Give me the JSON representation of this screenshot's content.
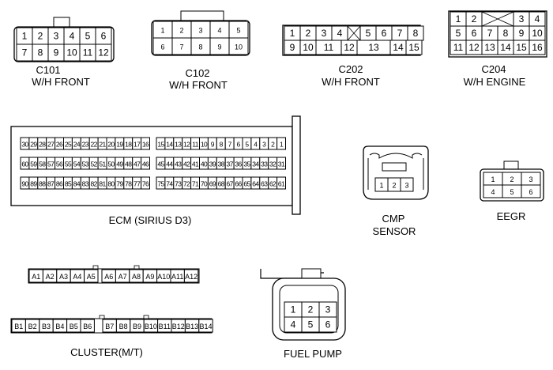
{
  "connectors": {
    "c101": {
      "name": "C101",
      "sub": "W/H FRONT",
      "rows": [
        [
          "1",
          "2",
          "3",
          "4",
          "5",
          "6"
        ],
        [
          "7",
          "8",
          "9",
          "10",
          "11",
          "12"
        ]
      ]
    },
    "c102": {
      "name": "C102",
      "sub": "W/H FRONT",
      "rows": [
        [
          "1",
          "2",
          "3",
          "4",
          "5"
        ],
        [
          "6",
          "7",
          "8",
          "9",
          "10"
        ]
      ]
    },
    "c202": {
      "name": "C202",
      "sub": "W/H FRONT",
      "row1": [
        "1",
        "2",
        "3",
        "4",
        "",
        "5",
        "6",
        "7",
        "8"
      ],
      "row2": [
        "9",
        "10",
        "11",
        "12",
        "13",
        "14",
        "15"
      ]
    },
    "c204": {
      "name": "C204",
      "sub": "W/H ENGINE",
      "row1": [
        "1",
        "2",
        "",
        "3",
        "4"
      ],
      "row2": [
        "5",
        "6",
        "7",
        "8",
        "9",
        "10"
      ],
      "row3": [
        "11",
        "12",
        "13",
        "14",
        "15",
        "16"
      ]
    },
    "ecm": {
      "name": "ECM (SIRIUS D3)",
      "left": [
        [
          "30",
          "29",
          "28",
          "27",
          "26",
          "25",
          "24",
          "23",
          "22",
          "21",
          "20",
          "19",
          "18",
          "17",
          "16"
        ],
        [
          "60",
          "59",
          "58",
          "57",
          "56",
          "55",
          "54",
          "53",
          "52",
          "51",
          "50",
          "49",
          "48",
          "47",
          "46"
        ],
        [
          "90",
          "89",
          "88",
          "87",
          "86",
          "85",
          "84",
          "83",
          "82",
          "81",
          "80",
          "79",
          "78",
          "77",
          "76"
        ]
      ],
      "right": [
        [
          "15",
          "14",
          "13",
          "12",
          "11",
          "10",
          "9",
          "8",
          "7",
          "6",
          "5",
          "4",
          "3",
          "2",
          "1"
        ],
        [
          "45",
          "44",
          "43",
          "42",
          "41",
          "40",
          "39",
          "38",
          "37",
          "36",
          "35",
          "34",
          "33",
          "32",
          "31"
        ],
        [
          "75",
          "74",
          "73",
          "72",
          "71",
          "70",
          "69",
          "68",
          "67",
          "66",
          "65",
          "64",
          "63",
          "62",
          "61"
        ]
      ]
    },
    "cmp": {
      "name": "CMP",
      "sub": "SENSOR",
      "pins": [
        "1",
        "2",
        "3"
      ]
    },
    "eegr": {
      "name": "EEGR",
      "rows": [
        [
          "1",
          "2",
          "3"
        ],
        [
          "4",
          "5",
          "6"
        ]
      ]
    },
    "cluster": {
      "name": "CLUSTER(M/T)",
      "rowA_left": [
        "A1",
        "A2",
        "A3",
        "A4",
        "A5"
      ],
      "rowA_right": [
        "A6",
        "A7",
        "A8",
        "A9",
        "A10",
        "A11",
        "A12"
      ],
      "rowB_left": [
        "B1",
        "B2",
        "B3",
        "B4",
        "B5",
        "B6"
      ],
      "rowB_right": [
        "B7",
        "B8",
        "B9",
        "B10",
        "B11",
        "B12",
        "B13",
        "B14"
      ]
    },
    "fuel_pump": {
      "name": "FUEL PUMP",
      "rows": [
        [
          "1",
          "2",
          "3"
        ],
        [
          "4",
          "5",
          "6"
        ]
      ]
    }
  }
}
